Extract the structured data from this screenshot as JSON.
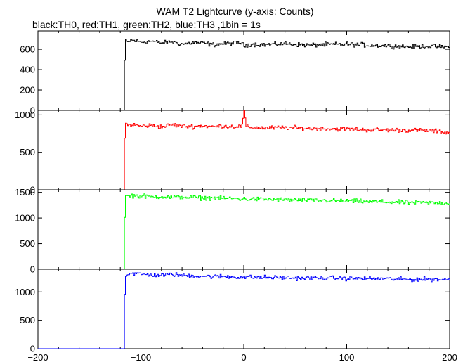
{
  "title": "WAM T2 Lightcurve (y-axis: Counts)",
  "subtitle": "black:TH0, red:TH1, green:TH2, blue:TH3 ,1bin = 1s",
  "chart_data": {
    "type": "line",
    "title": "WAM T2 Lightcurve (y-axis: Counts)",
    "subtitle": "black:TH0, red:TH1, green:TH2, blue:TH3 ,1bin = 1s",
    "xlim": [
      -200,
      200
    ],
    "x_ticks": [
      -200,
      -100,
      0,
      100,
      200
    ],
    "x_tick_labels": [
      "−200",
      "−100",
      "0",
      "100",
      "200"
    ],
    "series": [
      {
        "color": "#000000",
        "ylim": [
          0,
          780
        ],
        "y_ticks": [
          0,
          200,
          400,
          600
        ],
        "y_tick_labels": [
          "0",
          "200",
          "400",
          "600"
        ],
        "x": [
          -200,
          -117,
          -116,
          -115,
          -113,
          -110,
          -100,
          -90,
          -80,
          -70,
          -60,
          -50,
          -40,
          -30,
          -20,
          -10,
          -3,
          0,
          5,
          20,
          40,
          60,
          80,
          100,
          120,
          140,
          160,
          180,
          200
        ],
        "y": [
          0,
          0,
          490,
          680,
          665,
          690,
          670,
          680,
          660,
          675,
          650,
          665,
          660,
          645,
          655,
          660,
          665,
          630,
          650,
          645,
          655,
          640,
          645,
          650,
          640,
          635,
          625,
          630,
          620
        ]
      },
      {
        "color": "#ff0000",
        "ylim": [
          0,
          1060
        ],
        "y_ticks": [
          0,
          500,
          1000
        ],
        "y_tick_labels": [
          "0",
          "500",
          "1000"
        ],
        "x": [
          -200,
          -117,
          -116,
          -115,
          -113,
          -110,
          -100,
          -90,
          -80,
          -70,
          -60,
          -50,
          -40,
          -30,
          -20,
          -10,
          -2,
          0,
          2,
          20,
          40,
          60,
          80,
          100,
          120,
          140,
          160,
          180,
          200
        ],
        "y": [
          0,
          0,
          680,
          880,
          860,
          870,
          850,
          860,
          840,
          870,
          850,
          845,
          855,
          840,
          850,
          845,
          850,
          1060,
          840,
          825,
          830,
          820,
          815,
          810,
          800,
          800,
          795,
          790,
          760
        ]
      },
      {
        "color": "#00ff00",
        "ylim": [
          0,
          1550
        ],
        "y_ticks": [
          0,
          500,
          1000,
          1500
        ],
        "y_tick_labels": [
          "0",
          "500",
          "1000",
          "1500"
        ],
        "x": [
          -200,
          -117,
          -116,
          -115,
          -113,
          -110,
          -100,
          -90,
          -80,
          -70,
          -60,
          -50,
          -40,
          -30,
          -20,
          -10,
          0,
          20,
          40,
          60,
          80,
          100,
          120,
          140,
          160,
          180,
          200
        ],
        "y": [
          0,
          0,
          1050,
          1420,
          1430,
          1440,
          1430,
          1410,
          1420,
          1400,
          1410,
          1400,
          1390,
          1395,
          1385,
          1380,
          1370,
          1365,
          1355,
          1345,
          1340,
          1330,
          1320,
          1310,
          1300,
          1295,
          1290
        ]
      },
      {
        "color": "#0000ff",
        "ylim": [
          0,
          1400
        ],
        "y_ticks": [
          0,
          500,
          1000
        ],
        "y_tick_labels": [
          "0",
          "500",
          "1000"
        ],
        "x": [
          -200,
          -117,
          -116,
          -115,
          -113,
          -110,
          -100,
          -90,
          -80,
          -70,
          -60,
          -50,
          -40,
          -30,
          -20,
          -10,
          0,
          20,
          40,
          60,
          80,
          100,
          120,
          140,
          160,
          180,
          200
        ],
        "y": [
          0,
          0,
          950,
          1290,
          1320,
          1330,
          1310,
          1300,
          1295,
          1310,
          1290,
          1285,
          1280,
          1270,
          1275,
          1265,
          1260,
          1255,
          1250,
          1240,
          1245,
          1240,
          1235,
          1230,
          1220,
          1225,
          1215
        ]
      }
    ]
  }
}
